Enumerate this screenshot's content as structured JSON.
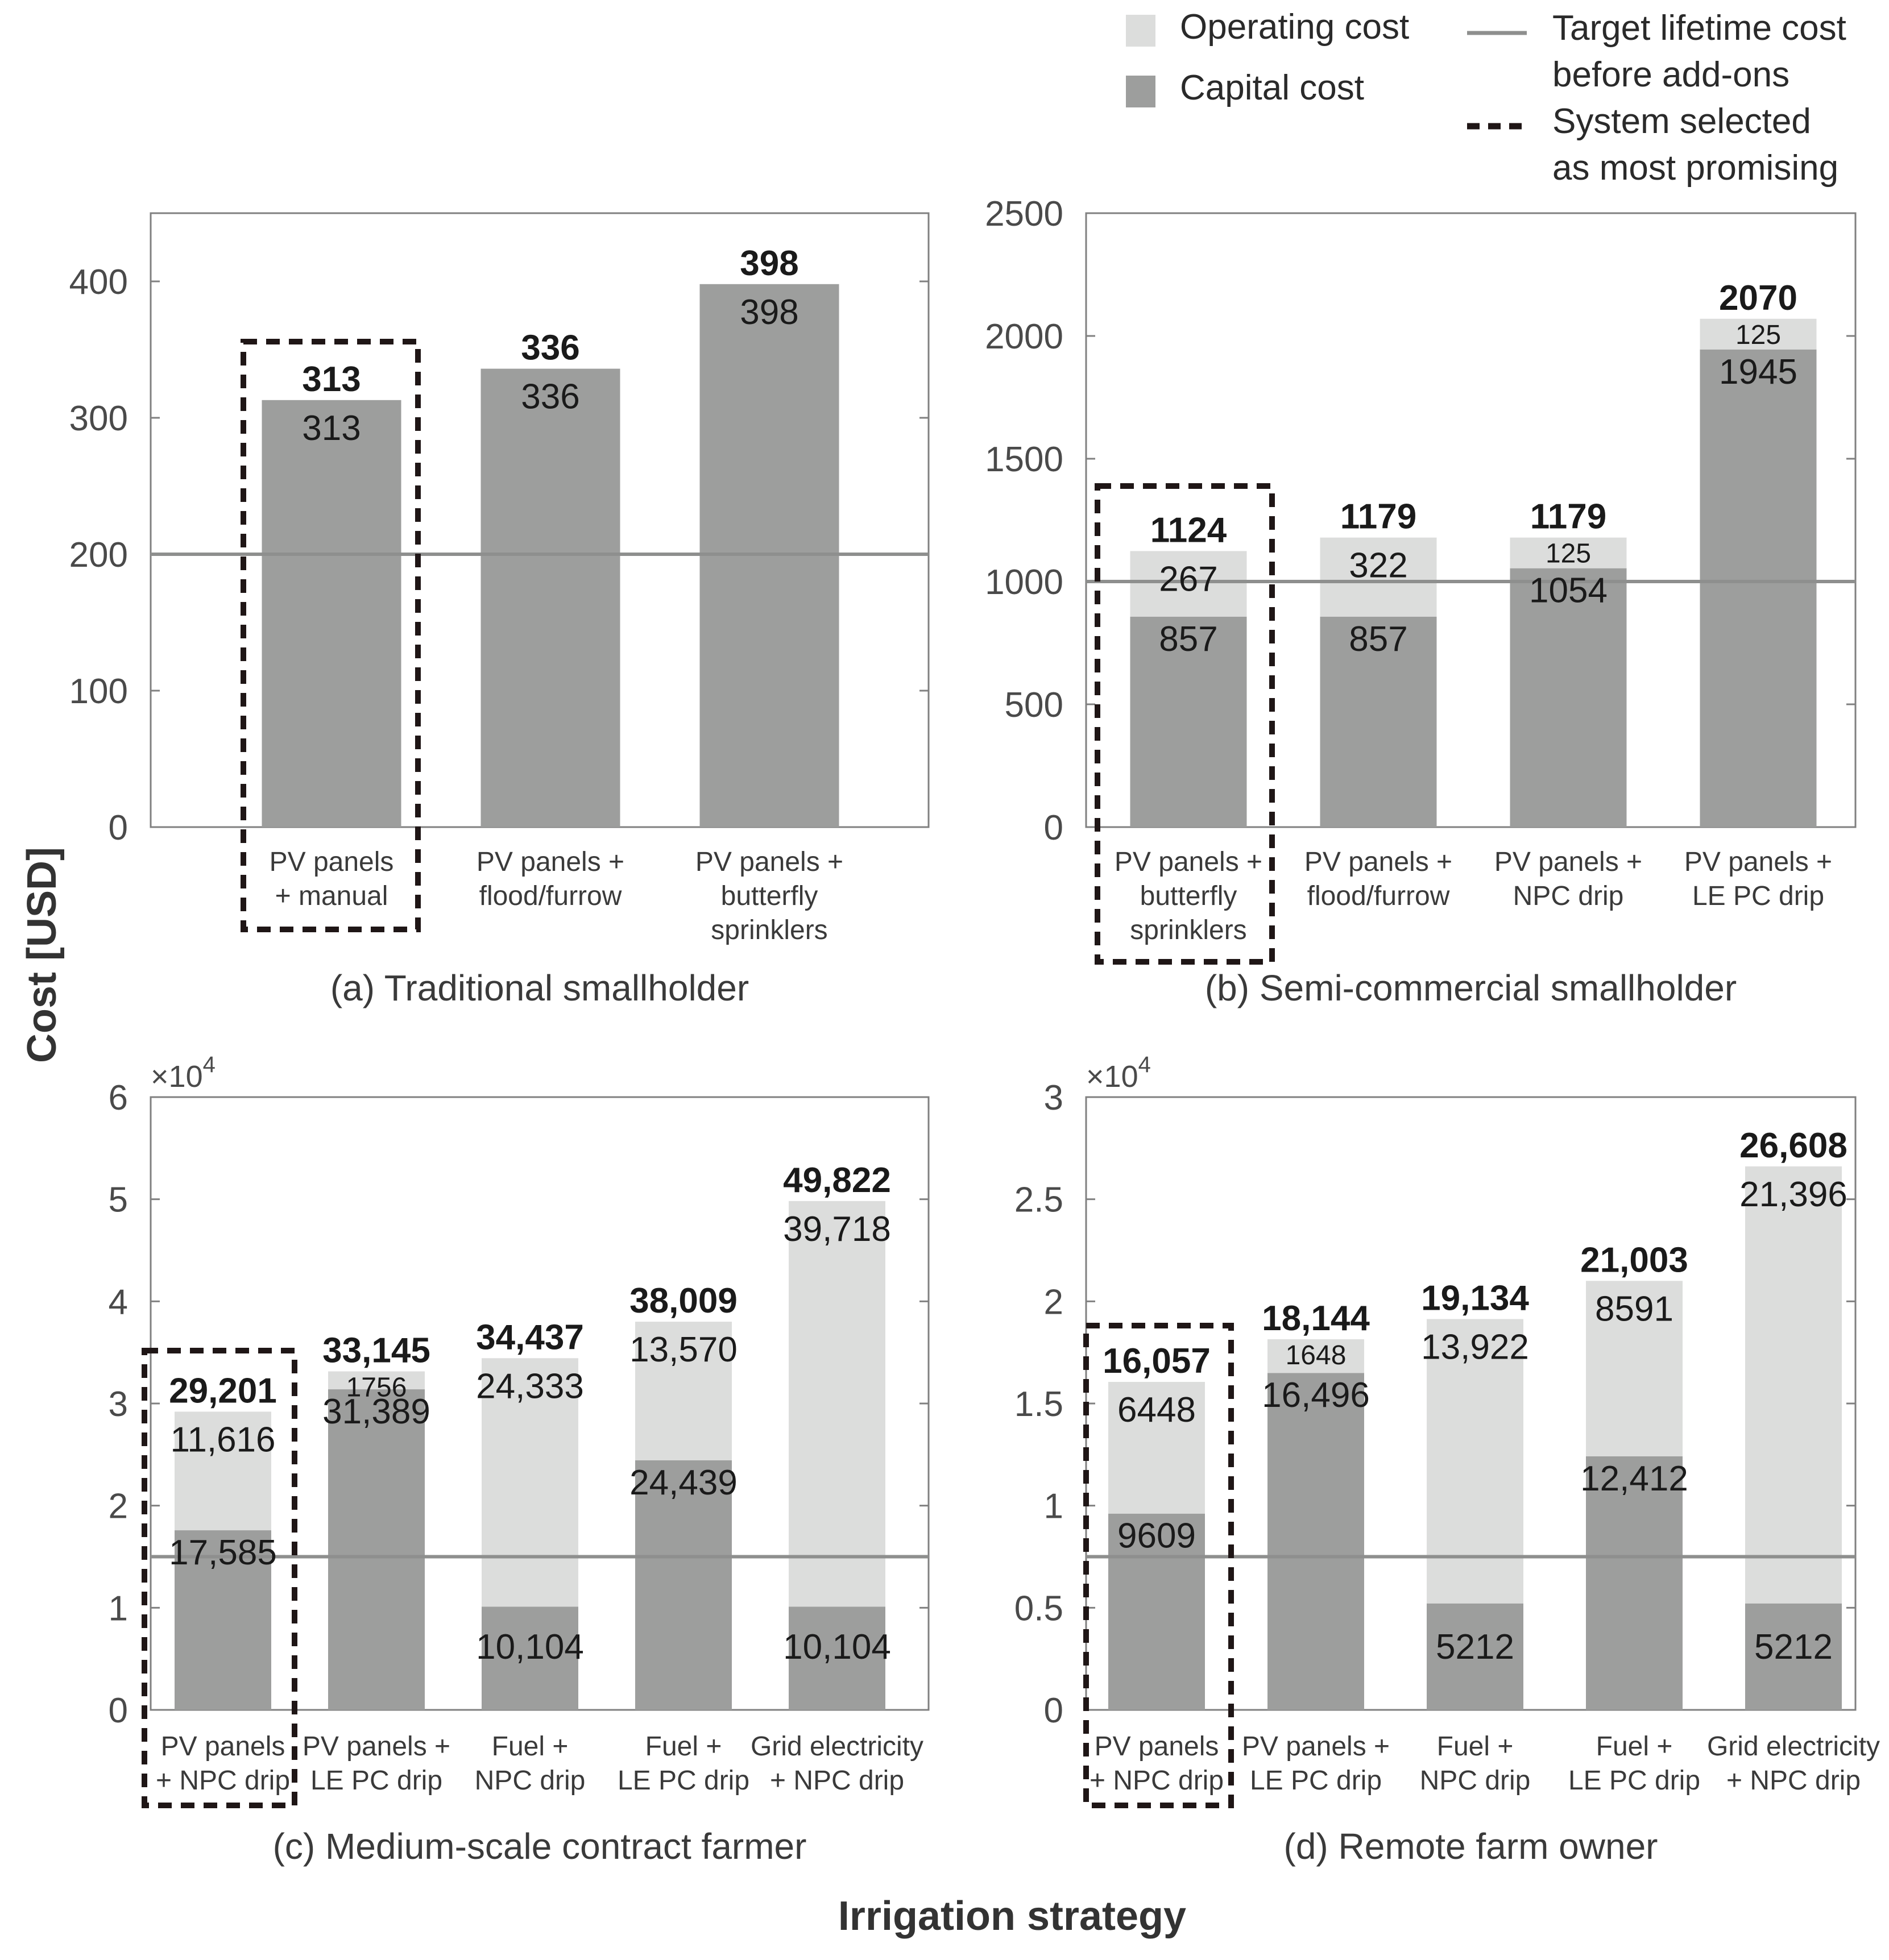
{
  "figure": {
    "y_axis_label": "Cost [USD]",
    "x_axis_label": "Irrigation strategy"
  },
  "legend": {
    "operating": "Operating cost",
    "capital": "Capital cost",
    "target_line_1": "Target lifetime cost",
    "target_line_2": "before add-ons",
    "selected_1": "System selected",
    "selected_2": "as most promising"
  },
  "colors": {
    "capital": "#9d9e9d",
    "operating": "#dcdddc",
    "target_line": "#8e8f8e",
    "axis": "#808080",
    "tick_text": "#4a4a4a",
    "label_text": "#1a1a1a",
    "selected_box": "#1f1616"
  },
  "chart_data": [
    {
      "type": "bar",
      "stacked": true,
      "title": "(a) Traditional smallholder",
      "ylim": [
        0,
        450
      ],
      "yticks": [
        0,
        100,
        200,
        300,
        400
      ],
      "ytick_labels": [
        "0",
        "100",
        "200",
        "300",
        "400"
      ],
      "y_multiplier_label": "",
      "target": 200,
      "selected_index": 0,
      "categories": [
        [
          "PV panels",
          "+ manual"
        ],
        [
          "PV panels +",
          "flood/furrow"
        ],
        [
          "PV panels +",
          "butterfly",
          "sprinklers"
        ]
      ],
      "series": [
        {
          "name": "Capital cost",
          "values": [
            313,
            336,
            398
          ]
        },
        {
          "name": "Operating cost",
          "values": [
            0,
            0,
            0
          ]
        }
      ],
      "totals": [
        313,
        336,
        398
      ],
      "total_labels": [
        "313",
        "336",
        "398"
      ],
      "capital_labels": [
        "313",
        "336",
        "398"
      ],
      "operating_labels": [
        "",
        "",
        ""
      ]
    },
    {
      "type": "bar",
      "stacked": true,
      "title": "(b) Semi-commercial smallholder",
      "ylim": [
        0,
        2500
      ],
      "yticks": [
        0,
        500,
        1000,
        1500,
        2000,
        2500
      ],
      "ytick_labels": [
        "0",
        "500",
        "1000",
        "1500",
        "2000",
        "2500"
      ],
      "y_multiplier_label": "",
      "target": 1000,
      "selected_index": 0,
      "categories": [
        [
          "PV panels +",
          "butterfly",
          "sprinklers"
        ],
        [
          "PV panels +",
          "flood/furrow"
        ],
        [
          "PV panels +",
          "NPC drip"
        ],
        [
          "PV panels +",
          "LE PC drip"
        ]
      ],
      "series": [
        {
          "name": "Capital cost",
          "values": [
            857,
            857,
            1054,
            1945
          ]
        },
        {
          "name": "Operating cost",
          "values": [
            267,
            322,
            125,
            125
          ]
        }
      ],
      "totals": [
        1124,
        1179,
        1179,
        2070
      ],
      "total_labels": [
        "1124",
        "1179",
        "1179",
        "2070"
      ],
      "capital_labels": [
        "857",
        "857",
        "1054",
        "1945"
      ],
      "operating_labels": [
        "267",
        "322",
        "125",
        "125"
      ]
    },
    {
      "type": "bar",
      "stacked": true,
      "title": "(c) Medium-scale contract farmer",
      "ylim": [
        0,
        60000
      ],
      "yticks": [
        0,
        10000,
        20000,
        30000,
        40000,
        50000,
        60000
      ],
      "ytick_labels": [
        "0",
        "1",
        "2",
        "3",
        "4",
        "5",
        "6"
      ],
      "y_multiplier_label": "×10",
      "y_multiplier_exp": "4",
      "target": 15000,
      "selected_index": 0,
      "categories": [
        [
          "PV panels",
          "+ NPC drip"
        ],
        [
          "PV panels +",
          "LE PC drip"
        ],
        [
          "Fuel +",
          "NPC drip"
        ],
        [
          "Fuel +",
          "LE PC drip"
        ],
        [
          "Grid electricity",
          "+ NPC drip"
        ]
      ],
      "series": [
        {
          "name": "Capital cost",
          "values": [
            17585,
            31389,
            10104,
            24439,
            10104
          ]
        },
        {
          "name": "Operating cost",
          "values": [
            11616,
            1756,
            24333,
            13570,
            39718
          ]
        }
      ],
      "totals": [
        29201,
        33145,
        34437,
        38009,
        49822
      ],
      "total_labels": [
        "29,201",
        "33,145",
        "34,437",
        "38,009",
        "49,822"
      ],
      "capital_labels": [
        "17,585",
        "31,389",
        "10,104",
        "24,439",
        "10,104"
      ],
      "operating_labels": [
        "11,616",
        "1756",
        "24,333",
        "13,570",
        "39,718"
      ]
    },
    {
      "type": "bar",
      "stacked": true,
      "title": "(d) Remote farm owner",
      "ylim": [
        0,
        30000
      ],
      "yticks": [
        0,
        5000,
        10000,
        15000,
        20000,
        25000,
        30000
      ],
      "ytick_labels": [
        "0",
        "0.5",
        "1",
        "1.5",
        "2",
        "2.5",
        "3"
      ],
      "y_multiplier_label": "×10",
      "y_multiplier_exp": "4",
      "target": 7500,
      "selected_index": 0,
      "categories": [
        [
          "PV panels",
          "+ NPC drip"
        ],
        [
          "PV panels +",
          "LE PC drip"
        ],
        [
          "Fuel +",
          "NPC drip"
        ],
        [
          "Fuel +",
          "LE PC drip"
        ],
        [
          "Grid electricity",
          "+ NPC drip"
        ]
      ],
      "series": [
        {
          "name": "Capital cost",
          "values": [
            9609,
            16496,
            5212,
            12412,
            5212
          ]
        },
        {
          "name": "Operating cost",
          "values": [
            6448,
            1648,
            13922,
            8591,
            21396
          ]
        }
      ],
      "totals": [
        16057,
        18144,
        19134,
        21003,
        26608
      ],
      "total_labels": [
        "16,057",
        "18,144",
        "19,134",
        "21,003",
        "26,608"
      ],
      "capital_labels": [
        "9609",
        "16,496",
        "5212",
        "12,412",
        "5212"
      ],
      "operating_labels": [
        "6448",
        "1648",
        "13,922",
        "8591",
        "21,396"
      ]
    }
  ]
}
